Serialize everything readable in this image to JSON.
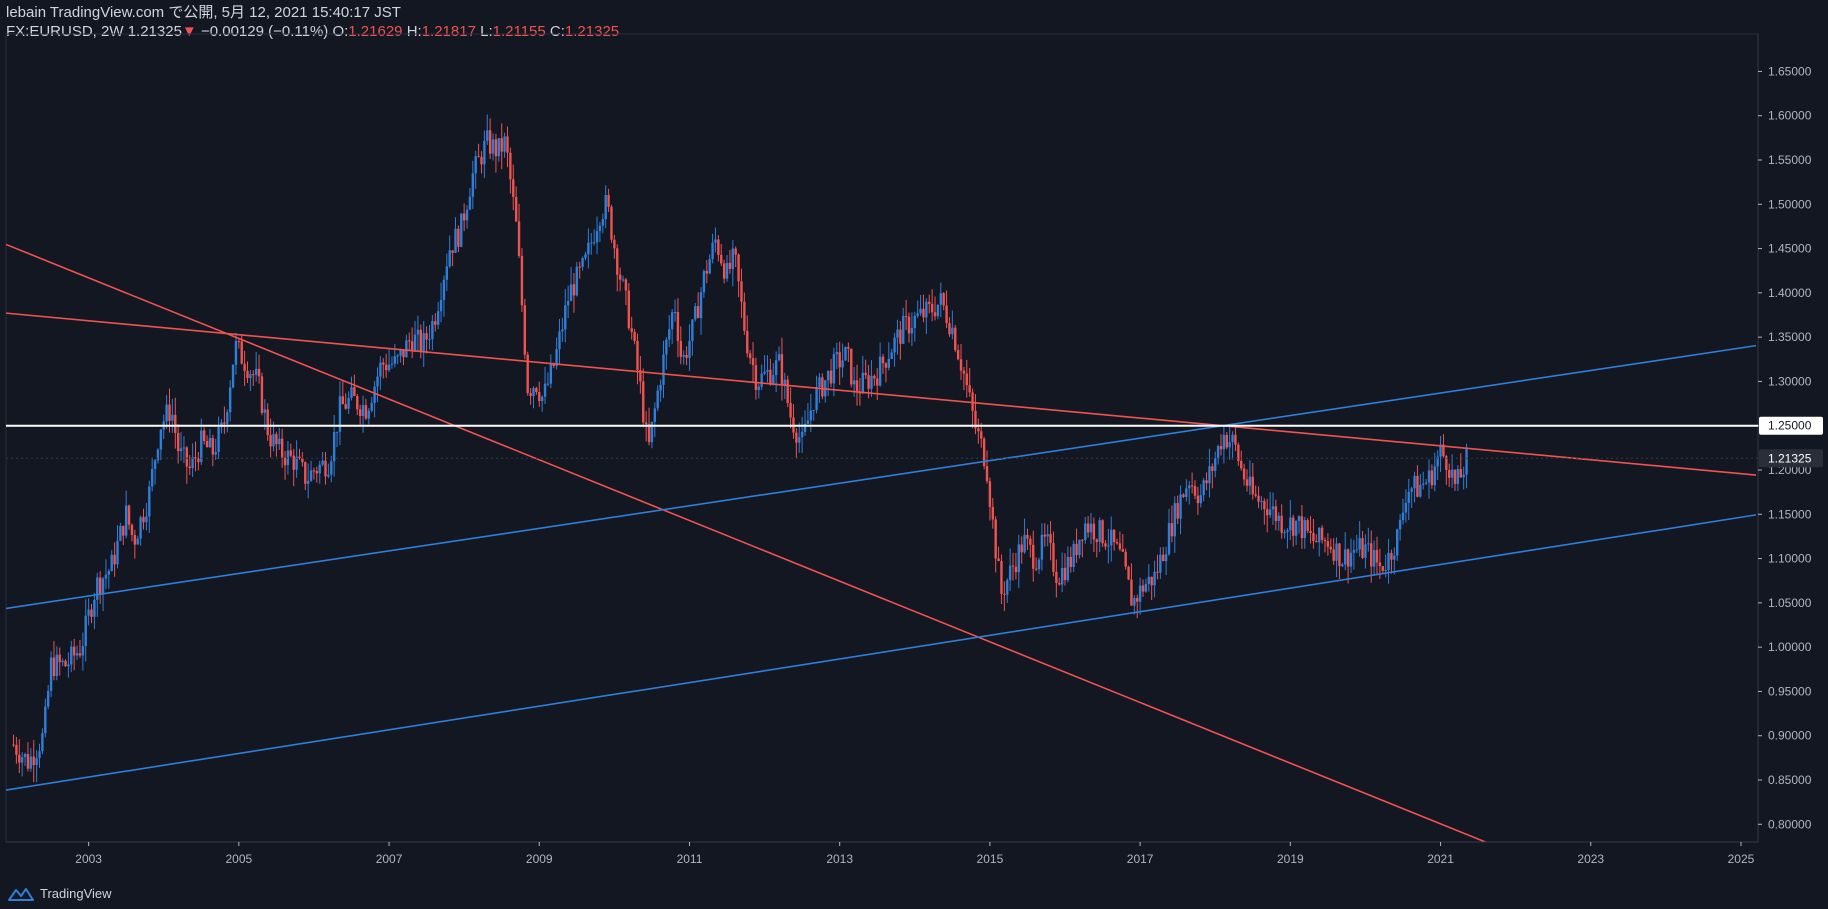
{
  "header": {
    "publisher": "lebain TradingView.com で公開, 5月 12, 2021 15:40:17 JST",
    "symbol": "FX:EURUSD, 2W",
    "last": "1.21325",
    "change_arrow": "▼",
    "change": "−0.00129 (−0.11%)",
    "o_label": "O:",
    "o_value": "1.21629",
    "h_label": "H:",
    "h_value": "1.21817",
    "l_label": "L:",
    "l_value": "1.21155",
    "c_label": "C:",
    "c_value": "1.21325"
  },
  "footer": {
    "brand": "TradingView"
  },
  "colors": {
    "background": "#131722",
    "up": "#2f7ed8",
    "down": "#ef5350",
    "trend_red": "#ef5350",
    "trend_blue": "#2f7ed8",
    "level": "#ffffff"
  },
  "chart_data": {
    "type": "candlestick",
    "symbol": "FX:EURUSD",
    "interval": "2W",
    "x_range": [
      2001.9,
      2025.2
    ],
    "y_range": [
      0.78,
      1.69
    ],
    "y_ticks": [
      0.8,
      0.85,
      0.9,
      0.95,
      1.0,
      1.05,
      1.1,
      1.15,
      1.2,
      1.25,
      1.3,
      1.35,
      1.4,
      1.45,
      1.5,
      1.55,
      1.6,
      1.65
    ],
    "y_tick_labels": [
      "0.80000",
      "0.85000",
      "0.90000",
      "0.95000",
      "1.00000",
      "1.05000",
      "1.10000",
      "1.15000",
      "1.20000",
      "1.25000",
      "1.30000",
      "1.35000",
      "1.40000",
      "1.45000",
      "1.50000",
      "1.55000",
      "1.60000",
      "1.65000"
    ],
    "x_ticks": [
      2003,
      2005,
      2007,
      2009,
      2011,
      2013,
      2015,
      2017,
      2019,
      2021,
      2023,
      2025
    ],
    "x_tick_labels": [
      "2003",
      "2005",
      "2007",
      "2009",
      "2011",
      "2013",
      "2015",
      "2017",
      "2019",
      "2021",
      "2023",
      "2025"
    ],
    "price_path": [
      [
        2002.0,
        0.89
      ],
      [
        2002.2,
        0.87
      ],
      [
        2002.4,
        0.9
      ],
      [
        2002.5,
        0.98
      ],
      [
        2002.7,
        0.98
      ],
      [
        2002.9,
        1.0
      ],
      [
        2003.1,
        1.07
      ],
      [
        2003.3,
        1.09
      ],
      [
        2003.5,
        1.15
      ],
      [
        2003.6,
        1.12
      ],
      [
        2003.8,
        1.17
      ],
      [
        2003.95,
        1.25
      ],
      [
        2004.1,
        1.27
      ],
      [
        2004.2,
        1.22
      ],
      [
        2004.35,
        1.2
      ],
      [
        2004.5,
        1.23
      ],
      [
        2004.65,
        1.22
      ],
      [
        2004.8,
        1.25
      ],
      [
        2004.95,
        1.34
      ],
      [
        2005.1,
        1.32
      ],
      [
        2005.25,
        1.3
      ],
      [
        2005.4,
        1.24
      ],
      [
        2005.55,
        1.22
      ],
      [
        2005.75,
        1.21
      ],
      [
        2005.9,
        1.19
      ],
      [
        2006.0,
        1.2
      ],
      [
        2006.2,
        1.21
      ],
      [
        2006.35,
        1.27
      ],
      [
        2006.5,
        1.28
      ],
      [
        2006.7,
        1.27
      ],
      [
        2006.9,
        1.32
      ],
      [
        2007.1,
        1.32
      ],
      [
        2007.3,
        1.35
      ],
      [
        2007.45,
        1.34
      ],
      [
        2007.6,
        1.37
      ],
      [
        2007.8,
        1.45
      ],
      [
        2007.95,
        1.47
      ],
      [
        2008.1,
        1.53
      ],
      [
        2008.3,
        1.57
      ],
      [
        2008.45,
        1.56
      ],
      [
        2008.55,
        1.57
      ],
      [
        2008.7,
        1.47
      ],
      [
        2008.85,
        1.29
      ],
      [
        2008.95,
        1.3
      ],
      [
        2009.05,
        1.28
      ],
      [
        2009.2,
        1.32
      ],
      [
        2009.4,
        1.4
      ],
      [
        2009.6,
        1.43
      ],
      [
        2009.8,
        1.49
      ],
      [
        2009.9,
        1.5
      ],
      [
        2010.05,
        1.43
      ],
      [
        2010.2,
        1.37
      ],
      [
        2010.35,
        1.29
      ],
      [
        2010.45,
        1.22
      ],
      [
        2010.6,
        1.3
      ],
      [
        2010.8,
        1.39
      ],
      [
        2010.9,
        1.32
      ],
      [
        2011.05,
        1.36
      ],
      [
        2011.2,
        1.42
      ],
      [
        2011.35,
        1.46
      ],
      [
        2011.5,
        1.42
      ],
      [
        2011.6,
        1.44
      ],
      [
        2011.75,
        1.35
      ],
      [
        2011.9,
        1.3
      ],
      [
        2012.05,
        1.31
      ],
      [
        2012.2,
        1.32
      ],
      [
        2012.35,
        1.26
      ],
      [
        2012.5,
        1.23
      ],
      [
        2012.65,
        1.28
      ],
      [
        2012.8,
        1.3
      ],
      [
        2012.95,
        1.32
      ],
      [
        2013.1,
        1.33
      ],
      [
        2013.2,
        1.29
      ],
      [
        2013.35,
        1.3
      ],
      [
        2013.5,
        1.31
      ],
      [
        2013.7,
        1.34
      ],
      [
        2013.85,
        1.36
      ],
      [
        2014.0,
        1.37
      ],
      [
        2014.2,
        1.38
      ],
      [
        2014.35,
        1.39
      ],
      [
        2014.5,
        1.36
      ],
      [
        2014.65,
        1.31
      ],
      [
        2014.8,
        1.25
      ],
      [
        2014.95,
        1.21
      ],
      [
        2015.05,
        1.13
      ],
      [
        2015.15,
        1.06
      ],
      [
        2015.3,
        1.09
      ],
      [
        2015.45,
        1.12
      ],
      [
        2015.6,
        1.1
      ],
      [
        2015.75,
        1.12
      ],
      [
        2015.9,
        1.08
      ],
      [
        2016.1,
        1.1
      ],
      [
        2016.25,
        1.14
      ],
      [
        2016.45,
        1.13
      ],
      [
        2016.6,
        1.12
      ],
      [
        2016.75,
        1.1
      ],
      [
        2016.9,
        1.05
      ],
      [
        2017.05,
        1.07
      ],
      [
        2017.2,
        1.08
      ],
      [
        2017.35,
        1.12
      ],
      [
        2017.5,
        1.16
      ],
      [
        2017.65,
        1.19
      ],
      [
        2017.8,
        1.17
      ],
      [
        2017.95,
        1.2
      ],
      [
        2018.1,
        1.24
      ],
      [
        2018.25,
        1.23
      ],
      [
        2018.35,
        1.2
      ],
      [
        2018.5,
        1.17
      ],
      [
        2018.7,
        1.16
      ],
      [
        2018.9,
        1.14
      ],
      [
        2019.1,
        1.14
      ],
      [
        2019.3,
        1.12
      ],
      [
        2019.5,
        1.12
      ],
      [
        2019.7,
        1.1
      ],
      [
        2019.85,
        1.11
      ],
      [
        2020.0,
        1.11
      ],
      [
        2020.2,
        1.09
      ],
      [
        2020.3,
        1.1
      ],
      [
        2020.45,
        1.13
      ],
      [
        2020.55,
        1.18
      ],
      [
        2020.7,
        1.18
      ],
      [
        2020.85,
        1.19
      ],
      [
        2021.0,
        1.22
      ],
      [
        2021.1,
        1.21
      ],
      [
        2021.2,
        1.18
      ],
      [
        2021.3,
        1.2
      ],
      [
        2021.36,
        1.21325
      ]
    ],
    "trend_lines": [
      {
        "color": "red",
        "from": [
          2005.1,
          1.352
        ],
        "to": [
          2018.1,
          1.25
        ]
      },
      {
        "color": "red",
        "from": [
          2007.0,
          1.28
        ],
        "to": [
          2015.0,
          1.006
        ]
      },
      {
        "color": "blue",
        "from": [
          2002.0,
          1.045
        ],
        "to": [
          2018.1,
          1.25
        ]
      },
      {
        "color": "blue",
        "from": [
          2002.0,
          0.84
        ],
        "to": [
          2017.0,
          1.04
        ]
      }
    ],
    "horizontal_level": 1.25,
    "horizontal_level_label": "1.25000",
    "last_price": 1.21325,
    "last_price_label": "1.21325"
  }
}
